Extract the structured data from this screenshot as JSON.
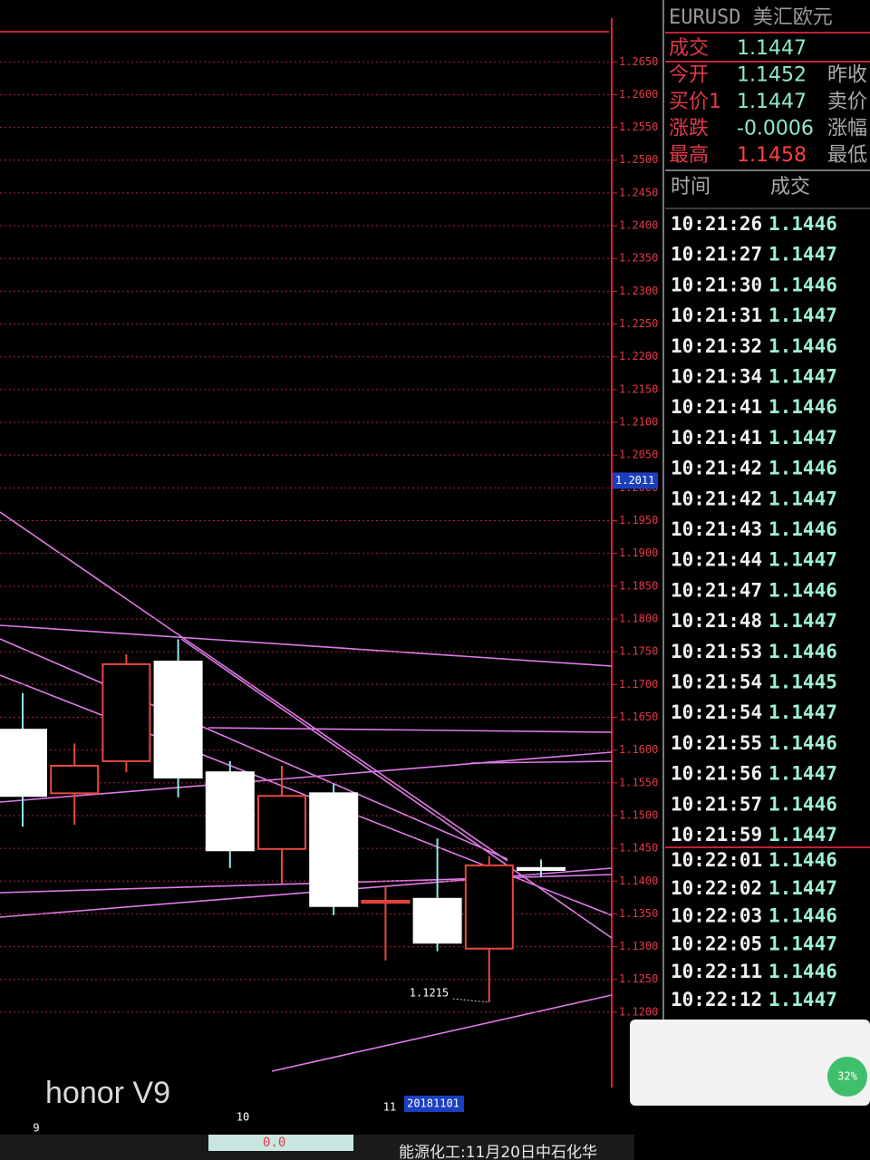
{
  "chart_data": {
    "type": "candlestick",
    "open": [
      1.1631,
      1.1534,
      1.1583,
      1.1735,
      1.1566,
      1.1449,
      1.1534,
      1.1367,
      1.1373,
      1.1297,
      1.142
    ],
    "high": [
      1.1687,
      1.161,
      1.1746,
      1.1769,
      1.1583,
      1.1576,
      1.1548,
      1.1392,
      1.1465,
      1.1438,
      1.1433
    ],
    "low": [
      1.1483,
      1.1486,
      1.1566,
      1.1528,
      1.142,
      1.1396,
      1.1348,
      1.1279,
      1.1293,
      1.1215,
      1.1406
    ],
    "close": [
      1.153,
      1.1576,
      1.1731,
      1.1558,
      1.1447,
      1.153,
      1.1362,
      1.137,
      1.1306,
      1.1424,
      1.1417
    ],
    "up_color": "#e8483f",
    "down_color": "#ffffff",
    "wick_color": "#8fe8e8",
    "ylim": [
      1.1092,
      1.2696
    ],
    "yticks": [
      {
        "value": 1.265,
        "label": "1.2650"
      },
      {
        "value": 1.26,
        "label": "1.2600"
      },
      {
        "value": 1.255,
        "label": "1.2550"
      },
      {
        "value": 1.25,
        "label": "1.2500"
      },
      {
        "value": 1.245,
        "label": "1.2450"
      },
      {
        "value": 1.24,
        "label": "1.2400"
      },
      {
        "value": 1.235,
        "label": "1.2350"
      },
      {
        "value": 1.23,
        "label": "1.2300"
      },
      {
        "value": 1.225,
        "label": "1.2250"
      },
      {
        "value": 1.22,
        "label": "1.2200"
      },
      {
        "value": 1.215,
        "label": "1.2150"
      },
      {
        "value": 1.21,
        "label": "1.2100"
      },
      {
        "value": 1.205,
        "label": "1.2050"
      },
      {
        "value": 1.2,
        "label": "1.2000"
      },
      {
        "value": 1.195,
        "label": "1.1950"
      },
      {
        "value": 1.19,
        "label": "1.1900"
      },
      {
        "value": 1.185,
        "label": "1.1850"
      },
      {
        "value": 1.18,
        "label": "1.1800"
      },
      {
        "value": 1.175,
        "label": "1.1750"
      },
      {
        "value": 1.17,
        "label": "1.1700"
      },
      {
        "value": 1.165,
        "label": "1.1650"
      },
      {
        "value": 1.16,
        "label": "1.1600"
      },
      {
        "value": 1.155,
        "label": "1.1550"
      },
      {
        "value": 1.15,
        "label": "1.1500"
      },
      {
        "value": 1.145,
        "label": "1.1450"
      },
      {
        "value": 1.14,
        "label": "1.1400"
      },
      {
        "value": 1.135,
        "label": "1.1350"
      },
      {
        "value": 1.13,
        "label": "1.1300"
      },
      {
        "value": 1.125,
        "label": "1.1250"
      },
      {
        "value": 1.12,
        "label": "1.1200"
      }
    ],
    "grid": true,
    "last_price": 1.2011,
    "x_labels": [
      "9",
      "10",
      "11",
      "20181101"
    ]
  },
  "quote_panel": {
    "title": "EURUSD 美汇欧元",
    "rows": [
      [
        "成交",
        "1.1447"
      ],
      [
        "今开",
        "1.1452",
        "昨收"
      ],
      [
        "买价1",
        "1.1447",
        "卖价"
      ],
      [
        "涨跌",
        "-0.0006",
        "涨幅"
      ],
      [
        "最高",
        "1.1458",
        "最低"
      ]
    ]
  },
  "ticks_table": {
    "header": [
      "时间",
      "成交"
    ],
    "rows": [
      [
        "10:21:26",
        "1.1446"
      ],
      [
        "10:21:27",
        "1.1447"
      ],
      [
        "10:21:30",
        "1.1446"
      ],
      [
        "10:21:31",
        "1.1447"
      ],
      [
        "10:21:32",
        "1.1446"
      ],
      [
        "10:21:34",
        "1.1447"
      ],
      [
        "10:21:41",
        "1.1446"
      ],
      [
        "10:21:41",
        "1.1447"
      ],
      [
        "10:21:42",
        "1.1446"
      ],
      [
        "10:21:42",
        "1.1447"
      ],
      [
        "10:21:43",
        "1.1446"
      ],
      [
        "10:21:44",
        "1.1447"
      ],
      [
        "10:21:47",
        "1.1446"
      ],
      [
        "10:21:48",
        "1.1447"
      ],
      [
        "10:21:53",
        "1.1446"
      ],
      [
        "10:21:54",
        "1.1445"
      ],
      [
        "10:21:54",
        "1.1447"
      ],
      [
        "10:21:55",
        "1.1446"
      ],
      [
        "10:21:56",
        "1.1447"
      ],
      [
        "10:21:57",
        "1.1446"
      ],
      [
        "10:21:59",
        "1.1447"
      ]
    ],
    "rows_next": [
      [
        "10:22:01",
        "1.1446"
      ],
      [
        "10:22:02",
        "1.1447"
      ],
      [
        "10:22:03",
        "1.1446"
      ],
      [
        "10:22:05",
        "1.1447"
      ],
      [
        "10:22:11",
        "1.1446"
      ],
      [
        "10:22:12",
        "1.1447"
      ]
    ]
  },
  "footer": {
    "value_box": "0.0",
    "news": "能源化工:11月20日中石化华",
    "badge": "32%"
  },
  "watermark": "honor V9"
}
